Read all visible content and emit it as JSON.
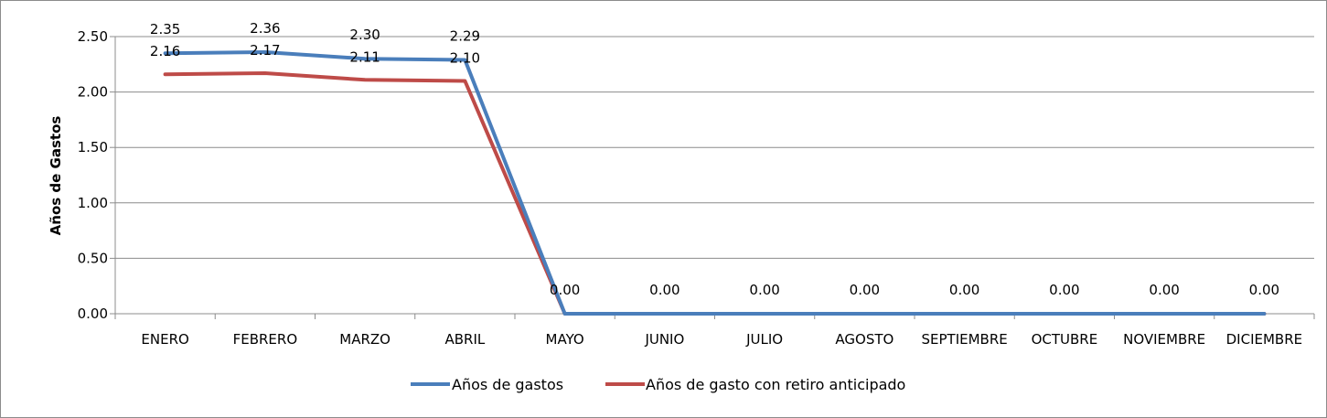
{
  "chart_data": {
    "type": "line",
    "title": "",
    "xlabel": "",
    "ylabel": "Años de Gastos",
    "ylim": [
      0,
      2.5
    ],
    "ytick_step": 0.5,
    "yticks": [
      "0.00",
      "0.50",
      "1.00",
      "1.50",
      "2.00",
      "2.50"
    ],
    "grid": true,
    "legend_position": "bottom",
    "categories": [
      "ENERO",
      "FEBRERO",
      "MARZO",
      "ABRIL",
      "MAYO",
      "JUNIO",
      "JULIO",
      "AGOSTO",
      "SEPTIEMBRE",
      "OCTUBRE",
      "NOVIEMBRE",
      "DICIEMBRE"
    ],
    "series": [
      {
        "name": "Años de gastos",
        "color": "#4a7ebb",
        "values": [
          2.35,
          2.36,
          2.3,
          2.29,
          0,
          0,
          0,
          0,
          0,
          0,
          0,
          0
        ],
        "labels": [
          "2.35",
          "2.36",
          "2.30",
          "2.29",
          "0.00",
          "0.00",
          "0.00",
          "0.00",
          "0.00",
          "0.00",
          "0.00",
          "0.00"
        ]
      },
      {
        "name": "Años de gasto con retiro anticipado",
        "color": "#be4b48",
        "values": [
          2.16,
          2.17,
          2.11,
          2.1,
          0,
          0,
          0,
          0,
          0,
          0,
          0,
          0
        ],
        "labels": [
          "2.16",
          "2.17",
          "2.11",
          "2.10",
          "",
          "",
          "",
          "",
          "",
          "",
          "",
          ""
        ]
      }
    ]
  }
}
